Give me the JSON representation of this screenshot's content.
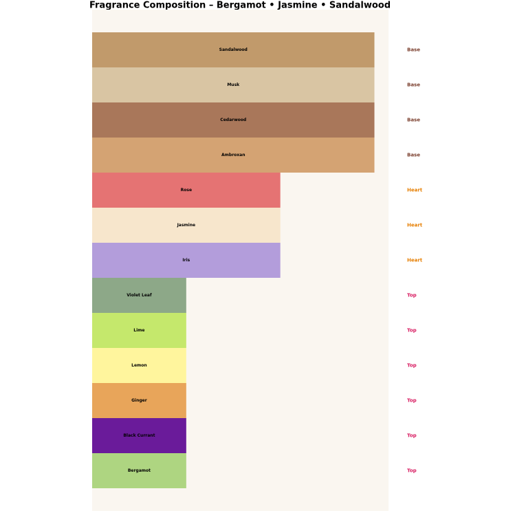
{
  "chart_data": {
    "type": "bar",
    "orientation": "horizontal",
    "title": "Fragrance Composition – Bergamot • Jasmine • Sandalwood",
    "categories": [
      "Sandalwood",
      "Musk",
      "Cedarwood",
      "Ambroxan",
      "Rose",
      "Jasmine",
      "Iris",
      "Violet Leaf",
      "Lime",
      "Lemon",
      "Ginger",
      "Black Currant",
      "Bergamot"
    ],
    "values": [
      3,
      3,
      3,
      3,
      2,
      2,
      2,
      1,
      1,
      1,
      1,
      1,
      1
    ],
    "colors": [
      "#c19a6b",
      "#d9c5a3",
      "#a9775a",
      "#d4a373",
      "#e57373",
      "#f7e6cc",
      "#b39ddb",
      "#8da888",
      "#c5e86c",
      "#fff59d",
      "#e8a55a",
      "#6a1b9a",
      "#aed581"
    ],
    "notes": [
      "Base",
      "Base",
      "Base",
      "Base",
      "Heart",
      "Heart",
      "Heart",
      "Top",
      "Top",
      "Top",
      "Top",
      "Top",
      "Top"
    ],
    "note_colors": [
      "#7b3f2e",
      "#7b3f2e",
      "#7b3f2e",
      "#7b3f2e",
      "#e67e00",
      "#e67e00",
      "#e67e00",
      "#d81b60",
      "#d81b60",
      "#d81b60",
      "#d81b60",
      "#d81b60",
      "#d81b60"
    ],
    "xlim": [
      0,
      3.15
    ],
    "background": "#faf6f0"
  }
}
